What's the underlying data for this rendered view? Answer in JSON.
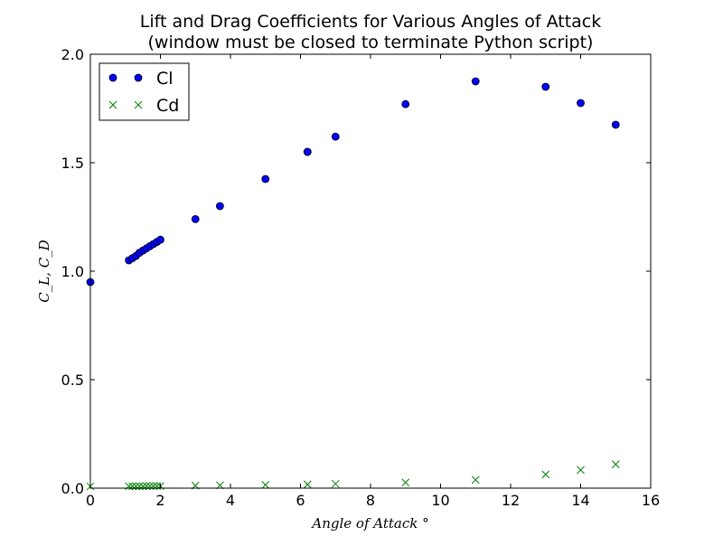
{
  "chart_data": {
    "type": "scatter",
    "title_lines": [
      "Lift and Drag Coefficients for Various Angles of Attack",
      "(window must be closed to terminate Python script)"
    ],
    "xlabel": "Angle of Attack °",
    "ylabel": "C_L, C_D",
    "xlim": [
      0,
      16
    ],
    "ylim": [
      0,
      2.0
    ],
    "x_ticks": [
      0,
      2,
      4,
      6,
      8,
      10,
      12,
      14,
      16
    ],
    "x_tick_labels": [
      "0",
      "2",
      "4",
      "6",
      "8",
      "10",
      "12",
      "14",
      "16"
    ],
    "y_ticks": [
      0,
      0.5,
      1.0,
      1.5,
      2.0
    ],
    "y_tick_labels": [
      "0.0",
      "0.5",
      "1.0",
      "1.5",
      "2.0"
    ],
    "grid": false,
    "legend_placement": "top-left",
    "series": [
      {
        "name": "Cl",
        "marker": "circle",
        "color": "#0000ff",
        "edge_color": "#000000",
        "x": [
          0,
          1.1,
          1.2,
          1.3,
          1.4,
          1.5,
          1.6,
          1.7,
          1.8,
          1.9,
          2.0,
          3.0,
          3.7,
          5.0,
          6.2,
          6.2,
          7.0,
          9.0,
          11.0,
          13.0,
          14.0,
          15.0
        ],
        "values": [
          0.95,
          1.05,
          1.06,
          1.07,
          1.085,
          1.095,
          1.105,
          1.115,
          1.125,
          1.135,
          1.145,
          1.24,
          1.3,
          1.425,
          1.55,
          1.55,
          1.62,
          1.77,
          1.875,
          1.85,
          1.775,
          1.675
        ]
      },
      {
        "name": "Cd",
        "marker": "x",
        "color": "#008000",
        "x": [
          0,
          1.1,
          1.2,
          1.3,
          1.4,
          1.5,
          1.6,
          1.7,
          1.8,
          1.9,
          2.0,
          3.0,
          3.7,
          5.0,
          6.2,
          6.2,
          7.0,
          9.0,
          11.0,
          13.0,
          14.0,
          15.0
        ],
        "values": [
          0.008,
          0.009,
          0.009,
          0.009,
          0.009,
          0.009,
          0.01,
          0.01,
          0.01,
          0.01,
          0.01,
          0.012,
          0.013,
          0.015,
          0.017,
          0.017,
          0.02,
          0.026,
          0.038,
          0.063,
          0.084,
          0.11
        ]
      }
    ]
  }
}
